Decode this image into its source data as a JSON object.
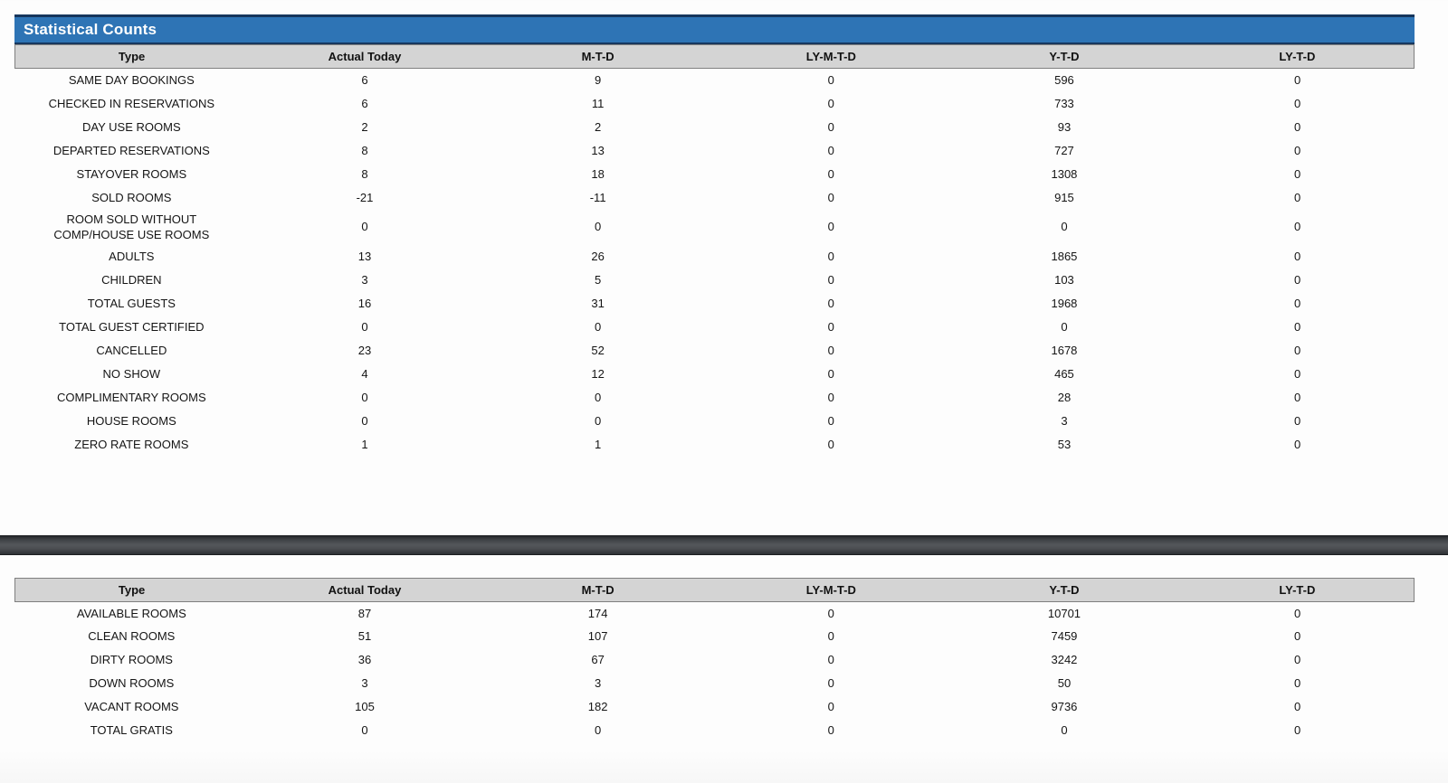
{
  "report": {
    "title": "Statistical Counts",
    "columns": [
      "Type",
      "Actual Today",
      "M-T-D",
      "LY-M-T-D",
      "Y-T-D",
      "LY-T-D"
    ],
    "colors": {
      "title_bar_blue": "#2e74b5",
      "title_text": "#ffffff",
      "title_border_navy": "#17375e",
      "column_header_bg": "#d4d4d4",
      "column_header_border": "#7f7f7f",
      "divider_bar_dark": "#3c3f43",
      "cell_text": "#151515"
    },
    "statistical_counts_rows": [
      {
        "type": "SAME DAY BOOKINGS",
        "actual_today": "6",
        "mtd": "9",
        "ly_mtd": "0",
        "ytd": "596",
        "ly_td": "0"
      },
      {
        "type": "CHECKED IN RESERVATIONS",
        "actual_today": "6",
        "mtd": "11",
        "ly_mtd": "0",
        "ytd": "733",
        "ly_td": "0"
      },
      {
        "type": "DAY USE ROOMS",
        "actual_today": "2",
        "mtd": "2",
        "ly_mtd": "0",
        "ytd": "93",
        "ly_td": "0"
      },
      {
        "type": "DEPARTED RESERVATIONS",
        "actual_today": "8",
        "mtd": "13",
        "ly_mtd": "0",
        "ytd": "727",
        "ly_td": "0"
      },
      {
        "type": "STAYOVER ROOMS",
        "actual_today": "8",
        "mtd": "18",
        "ly_mtd": "0",
        "ytd": "1308",
        "ly_td": "0"
      },
      {
        "type": "SOLD ROOMS",
        "actual_today": "-21",
        "mtd": "-11",
        "ly_mtd": "0",
        "ytd": "915",
        "ly_td": "0"
      },
      {
        "type": "ROOM SOLD WITHOUT\nCOMP/HOUSE USE ROOMS",
        "actual_today": "0",
        "mtd": "0",
        "ly_mtd": "0",
        "ytd": "0",
        "ly_td": "0"
      },
      {
        "type": "ADULTS",
        "actual_today": "13",
        "mtd": "26",
        "ly_mtd": "0",
        "ytd": "1865",
        "ly_td": "0"
      },
      {
        "type": "CHILDREN",
        "actual_today": "3",
        "mtd": "5",
        "ly_mtd": "0",
        "ytd": "103",
        "ly_td": "0"
      },
      {
        "type": "TOTAL GUESTS",
        "actual_today": "16",
        "mtd": "31",
        "ly_mtd": "0",
        "ytd": "1968",
        "ly_td": "0"
      },
      {
        "type": "TOTAL GUEST CERTIFIED",
        "actual_today": "0",
        "mtd": "0",
        "ly_mtd": "0",
        "ytd": "0",
        "ly_td": "0"
      },
      {
        "type": "CANCELLED",
        "actual_today": "23",
        "mtd": "52",
        "ly_mtd": "0",
        "ytd": "1678",
        "ly_td": "0"
      },
      {
        "type": "NO SHOW",
        "actual_today": "4",
        "mtd": "12",
        "ly_mtd": "0",
        "ytd": "465",
        "ly_td": "0"
      },
      {
        "type": "COMPLIMENTARY ROOMS",
        "actual_today": "0",
        "mtd": "0",
        "ly_mtd": "0",
        "ytd": "28",
        "ly_td": "0"
      },
      {
        "type": "HOUSE ROOMS",
        "actual_today": "0",
        "mtd": "0",
        "ly_mtd": "0",
        "ytd": "3",
        "ly_td": "0"
      },
      {
        "type": "ZERO RATE ROOMS",
        "actual_today": "1",
        "mtd": "1",
        "ly_mtd": "0",
        "ytd": "53",
        "ly_td": "0"
      }
    ],
    "room_status_rows": [
      {
        "type": "AVAILABLE ROOMS",
        "actual_today": "87",
        "mtd": "174",
        "ly_mtd": "0",
        "ytd": "10701",
        "ly_td": "0"
      },
      {
        "type": "CLEAN ROOMS",
        "actual_today": "51",
        "mtd": "107",
        "ly_mtd": "0",
        "ytd": "7459",
        "ly_td": "0"
      },
      {
        "type": "DIRTY ROOMS",
        "actual_today": "36",
        "mtd": "67",
        "ly_mtd": "0",
        "ytd": "3242",
        "ly_td": "0"
      },
      {
        "type": "DOWN ROOMS",
        "actual_today": "3",
        "mtd": "3",
        "ly_mtd": "0",
        "ytd": "50",
        "ly_td": "0"
      },
      {
        "type": "VACANT ROOMS",
        "actual_today": "105",
        "mtd": "182",
        "ly_mtd": "0",
        "ytd": "9736",
        "ly_td": "0"
      },
      {
        "type": "TOTAL GRATIS",
        "actual_today": "0",
        "mtd": "0",
        "ly_mtd": "0",
        "ytd": "0",
        "ly_td": "0"
      }
    ]
  }
}
